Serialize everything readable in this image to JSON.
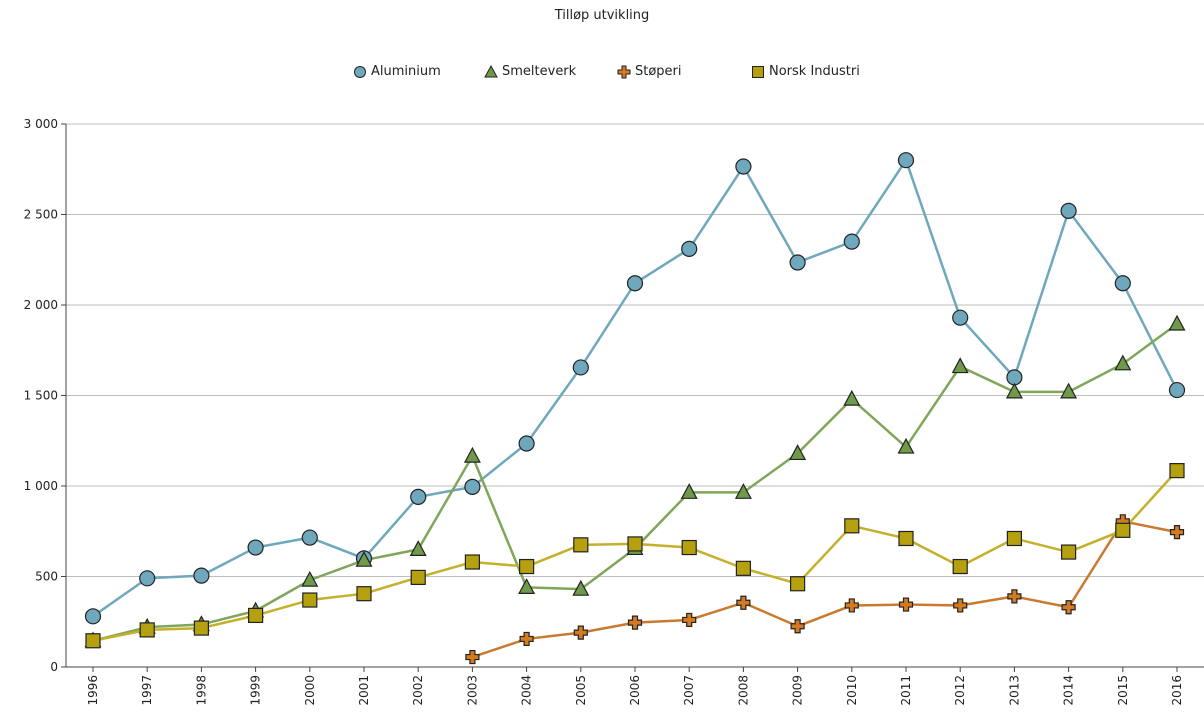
{
  "chart_data": {
    "type": "line",
    "title": "Tilløp utvikling",
    "xlabel": "",
    "ylabel": "",
    "ylim": [
      0,
      3000
    ],
    "y_ticks": [
      "0",
      "500",
      "1 000",
      "1 500",
      "2 000",
      "2 500",
      "3 000"
    ],
    "y_tick_values": [
      0,
      500,
      1000,
      1500,
      2000,
      2500,
      3000
    ],
    "grid": true,
    "legend_position": "top-center",
    "categories": [
      "1996",
      "1997",
      "1998",
      "1999",
      "2000",
      "2001",
      "2002",
      "2003",
      "2004",
      "2005",
      "2006",
      "2007",
      "2008",
      "2009",
      "2010",
      "2011",
      "2012",
      "2013",
      "2014",
      "2015",
      "2016"
    ],
    "series": [
      {
        "name": "Aluminium",
        "marker": "circle",
        "color": "#6fa8bd",
        "fill": "#6fa8bd",
        "values": [
          280,
          490,
          505,
          660,
          715,
          600,
          940,
          995,
          1235,
          1655,
          2120,
          2310,
          2765,
          2235,
          2350,
          2800,
          1930,
          1600,
          2520,
          2120,
          1530
        ]
      },
      {
        "name": "Smelteverk",
        "marker": "triangle",
        "color": "#7fa65a",
        "fill": "#6e9a4a",
        "values": [
          145,
          220,
          235,
          310,
          480,
          590,
          650,
          1165,
          440,
          430,
          655,
          965,
          965,
          1180,
          1480,
          1215,
          1660,
          1520,
          1520,
          1675,
          1895
        ]
      },
      {
        "name": "Støperi",
        "marker": "cross",
        "color": "#c97a30",
        "fill": "#d47a22",
        "values": [
          null,
          null,
          null,
          null,
          null,
          null,
          null,
          55,
          155,
          190,
          245,
          260,
          355,
          225,
          340,
          345,
          340,
          390,
          330,
          805,
          745
        ]
      },
      {
        "name": "Norsk Industri",
        "marker": "square",
        "color": "#c4b02a",
        "fill": "#b5a00f",
        "values": [
          145,
          205,
          215,
          285,
          370,
          405,
          495,
          580,
          555,
          675,
          680,
          660,
          545,
          460,
          780,
          710,
          555,
          710,
          635,
          755,
          1085
        ]
      }
    ]
  }
}
